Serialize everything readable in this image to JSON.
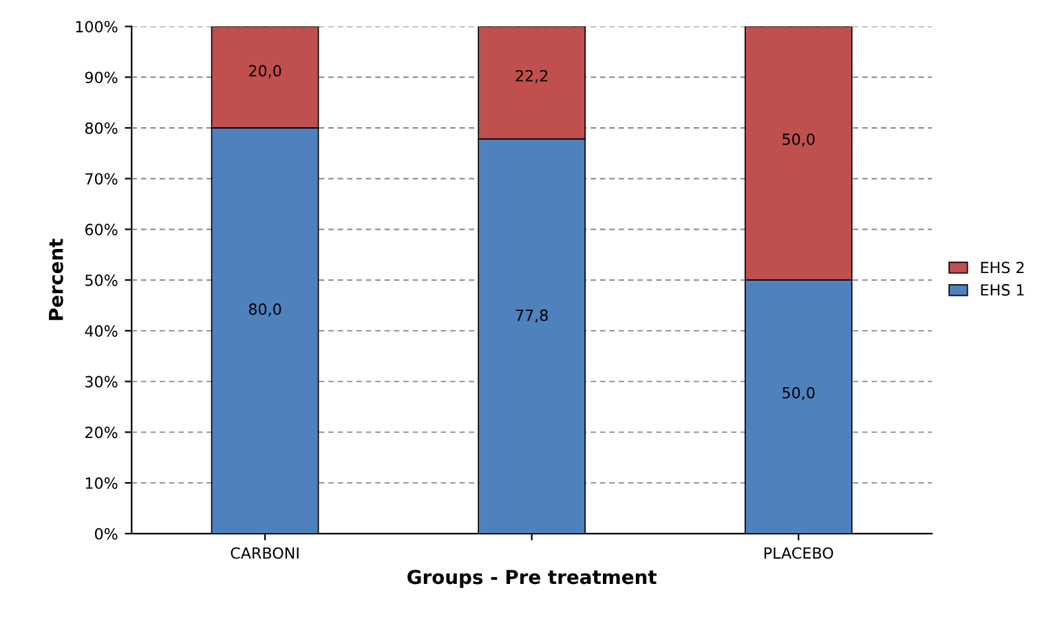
{
  "chart_data": {
    "type": "bar",
    "stacked": true,
    "xlabel": "Groups - Pre treatment",
    "ylabel": "Percent",
    "categories": [
      "CARBONI",
      null,
      "PLACEBO"
    ],
    "series": [
      {
        "name": "EHS 1",
        "color": "#4f81bd",
        "values": [
          80.0,
          77.8,
          50.0
        ],
        "value_labels": [
          "80,0",
          "77,8",
          "50,0"
        ]
      },
      {
        "name": "EHS 2",
        "color": "#c0504d",
        "values": [
          20.0,
          22.2,
          50.0
        ],
        "value_labels": [
          "20,0",
          "22,2",
          "50,0"
        ]
      }
    ],
    "ylim": [
      0,
      100
    ],
    "yticks": [
      {
        "value": 0,
        "label": "0%"
      },
      {
        "value": 10,
        "label": "10%"
      },
      {
        "value": 20,
        "label": "20%"
      },
      {
        "value": 30,
        "label": "30%"
      },
      {
        "value": 40,
        "label": "40%"
      },
      {
        "value": 50,
        "label": "50%"
      },
      {
        "value": 60,
        "label": "60%"
      },
      {
        "value": 70,
        "label": "70%"
      },
      {
        "value": 80,
        "label": "80%"
      },
      {
        "value": 90,
        "label": "90%"
      },
      {
        "value": 100,
        "label": "100%"
      }
    ],
    "grid": "y",
    "legend": "right"
  }
}
